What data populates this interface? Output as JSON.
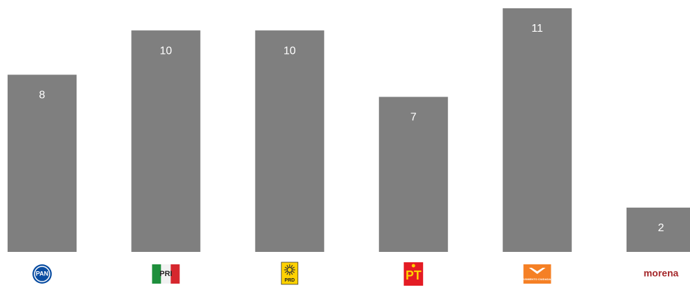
{
  "chart_data": {
    "type": "bar",
    "categories": [
      "PAN",
      "PRI",
      "PRD",
      "PT",
      "MOVIMIENTO CIUDADANO",
      "morena"
    ],
    "values": [
      8,
      10,
      10,
      7,
      11,
      2
    ],
    "color": "#7f7f7f",
    "label_color": "#ffffff",
    "ylim": [
      0,
      11
    ]
  }
}
